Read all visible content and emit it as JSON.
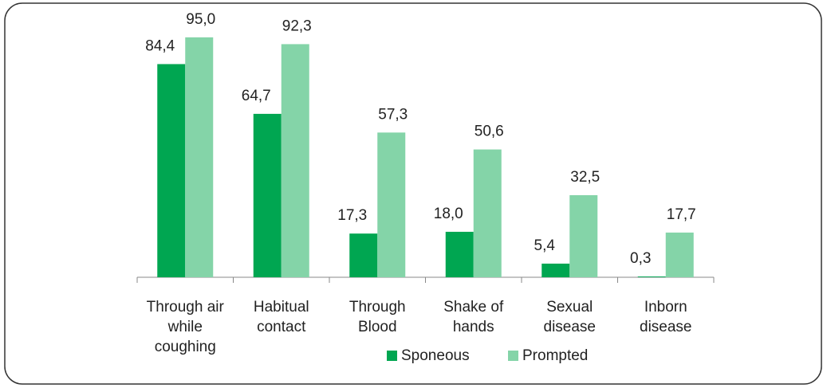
{
  "chart_data": {
    "type": "bar",
    "categories": [
      "Through air while coughing",
      "Habitual contact",
      "Through Blood",
      "Shake of hands",
      "Sexual disease",
      "Inborn disease"
    ],
    "series": [
      {
        "name": "Sponeous",
        "color": "#00a651",
        "values": [
          84.4,
          64.7,
          17.3,
          18.0,
          5.4,
          0.3
        ],
        "value_labels": [
          "84,4",
          "64,7",
          "17,3",
          "18,0",
          "5,4",
          "0,3"
        ]
      },
      {
        "name": "Prompted",
        "color": "#84d4a8",
        "values": [
          95.0,
          92.3,
          57.3,
          50.6,
          32.5,
          17.7
        ],
        "value_labels": [
          "95,0",
          "92,3",
          "57,3",
          "50,6",
          "32,5",
          "17,7"
        ]
      }
    ],
    "ylim": [
      0,
      100
    ],
    "legend": "bottom"
  }
}
